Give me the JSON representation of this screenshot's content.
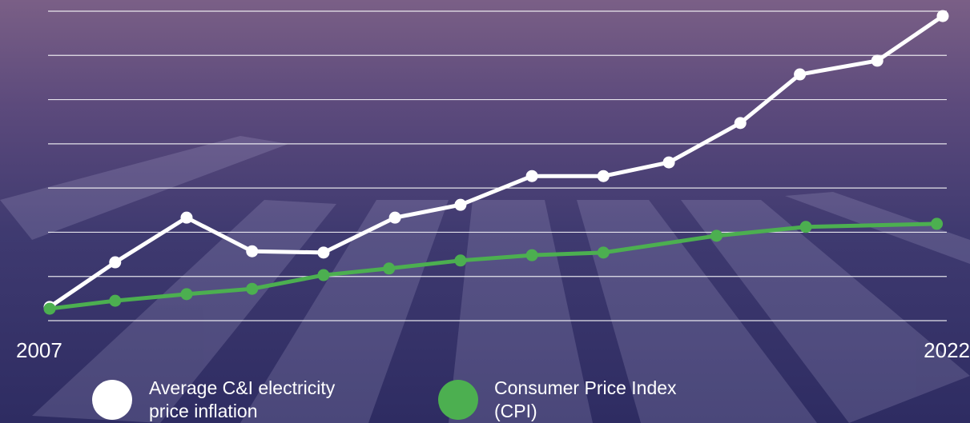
{
  "chart_data": {
    "type": "line",
    "xlim": [
      2007,
      2022
    ],
    "xticks": [
      2007,
      2022
    ],
    "ylim": [
      0,
      7
    ],
    "yticks": [
      0,
      1,
      2,
      3,
      4,
      5,
      6,
      7
    ],
    "grid": true,
    "series": [
      {
        "name": "Average C&I electricity price inflation",
        "color": "#ffffff",
        "x": [
          2007,
          2008.1,
          2009.3,
          2010.4,
          2011.6,
          2012.8,
          2013.9,
          2015.1,
          2016.3,
          2017.4,
          2018.6,
          2019.6,
          2020.9,
          2022
        ],
        "values": [
          0.31,
          1.32,
          2.33,
          1.57,
          1.54,
          2.33,
          2.62,
          3.27,
          3.27,
          3.58,
          4.47,
          5.57,
          5.88,
          6.89
        ]
      },
      {
        "name": "Consumer Price Index (CPI)",
        "color": "#4caf50",
        "x": [
          2007,
          2008.1,
          2009.3,
          2010.4,
          2011.6,
          2012.7,
          2013.9,
          2015.1,
          2016.3,
          2018.2,
          2019.7,
          2021.9
        ],
        "values": [
          0.27,
          0.45,
          0.6,
          0.72,
          1.03,
          1.18,
          1.36,
          1.48,
          1.54,
          1.92,
          2.12,
          2.19
        ]
      }
    ]
  }
}
